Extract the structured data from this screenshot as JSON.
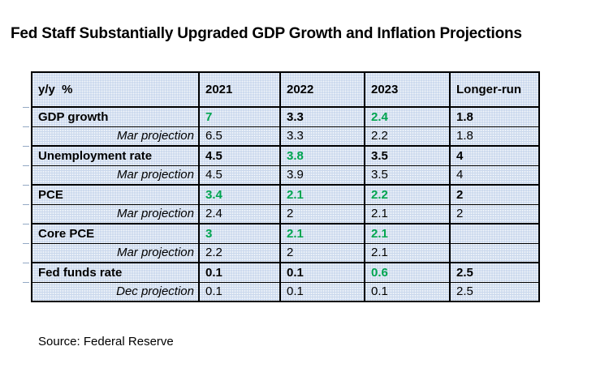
{
  "title": "Fed Staff Substantially Upgraded GDP Growth and Inflation Projections",
  "source_note": "Source: Federal Reserve",
  "colors": {
    "highlight_green": "#00A550",
    "cell_background": "#c9d7ec",
    "border": "#000000",
    "text": "#000000"
  },
  "chart_data": {
    "type": "table",
    "title": "Fed Staff Substantially Upgraded GDP Growth and Inflation Projections",
    "columns": [
      "y/y  %",
      "2021",
      "2022",
      "2023",
      "Longer-run"
    ],
    "rows": [
      {
        "label": "GDP growth",
        "kind": "main",
        "cells": [
          {
            "text": "7",
            "green": true
          },
          {
            "text": "3.3",
            "green": false
          },
          {
            "text": "2.4",
            "green": true
          },
          {
            "text": "1.8",
            "green": false
          }
        ]
      },
      {
        "label": "Mar projection",
        "kind": "projection",
        "cells": [
          {
            "text": "6.5",
            "green": false
          },
          {
            "text": "3.3",
            "green": false
          },
          {
            "text": "2.2",
            "green": false
          },
          {
            "text": "1.8",
            "green": false
          }
        ]
      },
      {
        "label": "Unemployment rate",
        "kind": "main",
        "cells": [
          {
            "text": "4.5",
            "green": false
          },
          {
            "text": "3.8",
            "green": true
          },
          {
            "text": "3.5",
            "green": false
          },
          {
            "text": "4",
            "green": false
          }
        ]
      },
      {
        "label": "Mar projection",
        "kind": "projection",
        "cells": [
          {
            "text": "4.5",
            "green": false
          },
          {
            "text": "3.9",
            "green": false
          },
          {
            "text": "3.5",
            "green": false
          },
          {
            "text": "4",
            "green": false
          }
        ]
      },
      {
        "label": "PCE",
        "kind": "main",
        "cells": [
          {
            "text": "3.4",
            "green": true
          },
          {
            "text": "2.1",
            "green": true
          },
          {
            "text": "2.2",
            "green": true
          },
          {
            "text": "2",
            "green": false
          }
        ]
      },
      {
        "label": "Mar projection",
        "kind": "projection",
        "cells": [
          {
            "text": "2.4",
            "green": false
          },
          {
            "text": "2",
            "green": false
          },
          {
            "text": "2.1",
            "green": false
          },
          {
            "text": "2",
            "green": false
          }
        ]
      },
      {
        "label": "Core PCE",
        "kind": "main",
        "cells": [
          {
            "text": "3",
            "green": true
          },
          {
            "text": "2.1",
            "green": true
          },
          {
            "text": "2.1",
            "green": true
          },
          {
            "text": "",
            "green": false
          }
        ]
      },
      {
        "label": "Mar projection",
        "kind": "projection",
        "cells": [
          {
            "text": "2.2",
            "green": false
          },
          {
            "text": "2",
            "green": false
          },
          {
            "text": "2.1",
            "green": false
          },
          {
            "text": "",
            "green": false
          }
        ]
      },
      {
        "label": "Fed funds rate",
        "kind": "main",
        "cells": [
          {
            "text": "0.1",
            "green": false
          },
          {
            "text": "0.1",
            "green": false
          },
          {
            "text": "0.6",
            "green": true
          },
          {
            "text": "2.5",
            "green": false
          }
        ]
      },
      {
        "label": "Dec projection",
        "kind": "projection",
        "cells": [
          {
            "text": "0.1",
            "green": false
          },
          {
            "text": "0.1",
            "green": false
          },
          {
            "text": "0.1",
            "green": false
          },
          {
            "text": "2.5",
            "green": false
          }
        ]
      }
    ]
  }
}
